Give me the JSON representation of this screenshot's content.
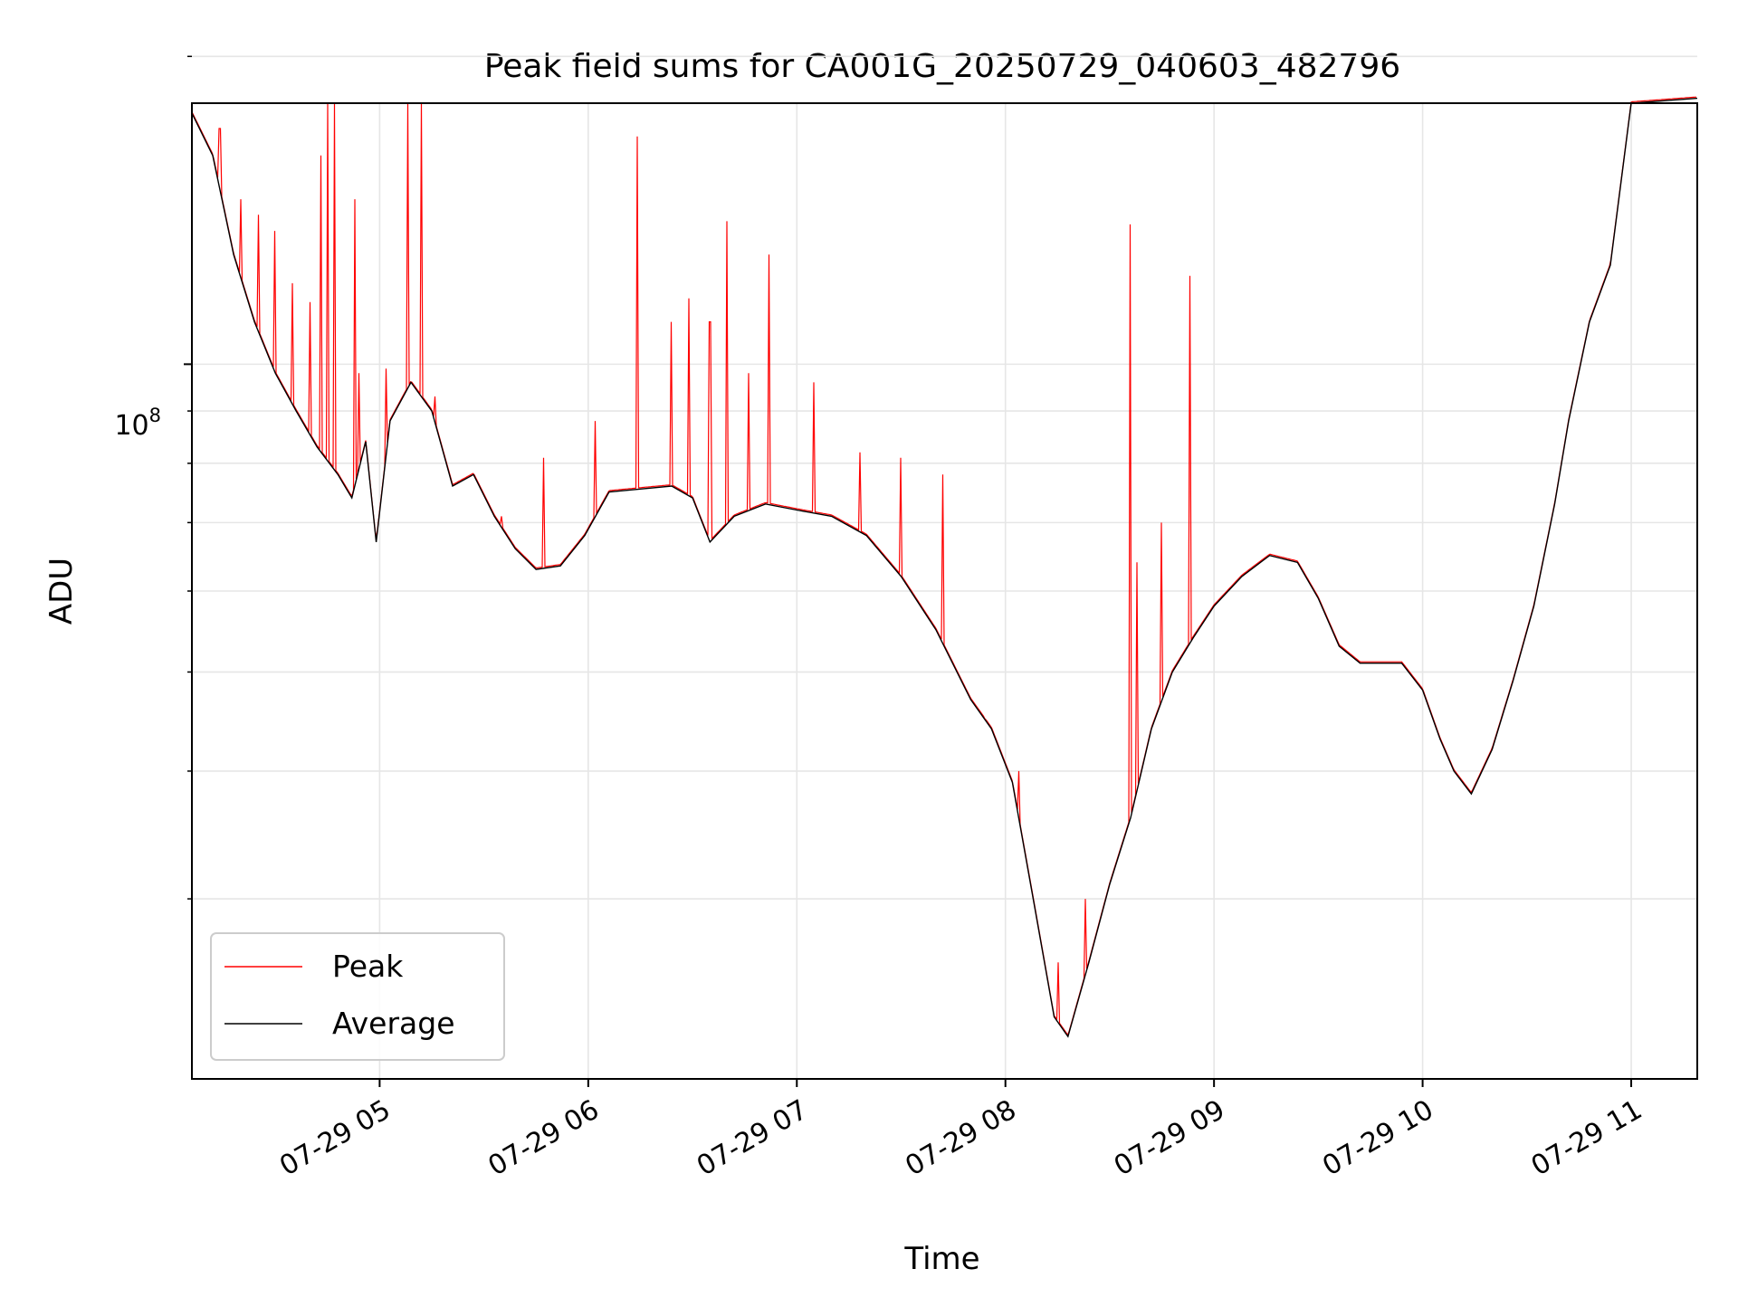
{
  "chart_data": {
    "type": "line",
    "title": "Peak field sums for CA001G_20250729_040603_482796",
    "xlabel": "Time",
    "ylabel": "ADU",
    "y_scale": "log",
    "ylim": [
      20000000,
      180000000
    ],
    "xlim": [
      "2025-07-29 04:06",
      "2025-07-29 11:19"
    ],
    "x_ticks": [
      "07-29 05",
      "07-29 06",
      "07-29 07",
      "07-29 08",
      "07-29 09",
      "07-29 10",
      "07-29 11"
    ],
    "x_tick_times": [
      "2025-07-29 05:00",
      "2025-07-29 06:00",
      "2025-07-29 07:00",
      "2025-07-29 08:00",
      "2025-07-29 09:00",
      "2025-07-29 10:00",
      "2025-07-29 11:00"
    ],
    "y_major_tick_label": "10",
    "y_major_tick_exponent": "8",
    "y_major_tick_value": 100000000,
    "y_minor_ticks": [
      30000000,
      40000000,
      50000000,
      60000000,
      70000000,
      80000000,
      90000000,
      200000000
    ],
    "grid": true,
    "legend_position": "lower-left",
    "colors": {
      "peak": "#ff0000",
      "average": "#000000",
      "grid": "#e6e6e6"
    },
    "series": [
      {
        "name": "Average",
        "x": [
          "2025-07-29 04:06",
          "2025-07-29 04:12",
          "2025-07-29 04:18",
          "2025-07-29 04:24",
          "2025-07-29 04:30",
          "2025-07-29 04:36",
          "2025-07-29 04:42",
          "2025-07-29 04:48",
          "2025-07-29 04:52",
          "2025-07-29 04:56",
          "2025-07-29 04:59",
          "2025-07-29 05:03",
          "2025-07-29 05:09",
          "2025-07-29 05:15",
          "2025-07-29 05:21",
          "2025-07-29 05:27",
          "2025-07-29 05:33",
          "2025-07-29 05:39",
          "2025-07-29 05:45",
          "2025-07-29 05:52",
          "2025-07-29 05:59",
          "2025-07-29 06:06",
          "2025-07-29 06:15",
          "2025-07-29 06:24",
          "2025-07-29 06:30",
          "2025-07-29 06:35",
          "2025-07-29 06:42",
          "2025-07-29 06:51",
          "2025-07-29 07:00",
          "2025-07-29 07:10",
          "2025-07-29 07:20",
          "2025-07-29 07:30",
          "2025-07-29 07:40",
          "2025-07-29 07:50",
          "2025-07-29 07:56",
          "2025-07-29 08:02",
          "2025-07-29 08:08",
          "2025-07-29 08:14",
          "2025-07-29 08:18",
          "2025-07-29 08:24",
          "2025-07-29 08:30",
          "2025-07-29 08:36",
          "2025-07-29 08:42",
          "2025-07-29 08:48",
          "2025-07-29 08:54",
          "2025-07-29 09:00",
          "2025-07-29 09:08",
          "2025-07-29 09:16",
          "2025-07-29 09:24",
          "2025-07-29 09:30",
          "2025-07-29 09:36",
          "2025-07-29 09:42",
          "2025-07-29 09:48",
          "2025-07-29 09:54",
          "2025-07-29 10:00",
          "2025-07-29 10:05",
          "2025-07-29 10:09",
          "2025-07-29 10:14",
          "2025-07-29 10:20",
          "2025-07-29 10:26",
          "2025-07-29 10:32",
          "2025-07-29 10:38",
          "2025-07-29 10:42",
          "2025-07-29 10:48",
          "2025-07-29 10:54",
          "2025-07-29 11:00",
          "2025-07-29 11:19"
        ],
        "y": [
          176000000,
          160000000,
          128000000,
          110000000,
          98000000,
          90000000,
          83000000,
          78000000,
          74000000,
          84000000,
          67000000,
          88000000,
          96000000,
          90000000,
          76000000,
          78000000,
          71000000,
          66000000,
          63000000,
          63500000,
          68000000,
          75000000,
          75500000,
          76000000,
          74000000,
          67000000,
          71000000,
          73000000,
          72000000,
          71000000,
          68000000,
          62000000,
          55000000,
          47000000,
          44000000,
          39000000,
          30000000,
          23000000,
          22000000,
          26000000,
          31000000,
          36000000,
          44000000,
          50000000,
          54000000,
          58000000,
          62000000,
          65000000,
          64000000,
          59000000,
          53000000,
          51000000,
          51000000,
          51000000,
          48000000,
          43000000,
          40000000,
          38000000,
          42000000,
          49000000,
          58000000,
          73000000,
          88000000,
          110000000,
          125000000,
          180000000,
          182000000
        ]
      },
      {
        "name": "Peak",
        "x": [
          "2025-07-29 04:14",
          "2025-07-29 04:20",
          "2025-07-29 04:25",
          "2025-07-29 04:30",
          "2025-07-29 04:35",
          "2025-07-29 04:40",
          "2025-07-29 04:43",
          "2025-07-29 04:45",
          "2025-07-29 04:47",
          "2025-07-29 04:53",
          "2025-07-29 04:54",
          "2025-07-29 05:02",
          "2025-07-29 05:08",
          "2025-07-29 05:12",
          "2025-07-29 05:16",
          "2025-07-29 05:35",
          "2025-07-29 05:47",
          "2025-07-29 06:02",
          "2025-07-29 06:14",
          "2025-07-29 06:24",
          "2025-07-29 06:29",
          "2025-07-29 06:35",
          "2025-07-29 06:40",
          "2025-07-29 06:46",
          "2025-07-29 06:52",
          "2025-07-29 07:05",
          "2025-07-29 07:18",
          "2025-07-29 07:30",
          "2025-07-29 07:42",
          "2025-07-29 07:54",
          "2025-07-29 08:04",
          "2025-07-29 08:15",
          "2025-07-29 08:23",
          "2025-07-29 08:36",
          "2025-07-29 08:38",
          "2025-07-29 08:45",
          "2025-07-29 08:53"
        ],
        "y": [
          170000000,
          145000000,
          140000000,
          135000000,
          120000000,
          115000000,
          160000000,
          185000000,
          185000000,
          145000000,
          98000000,
          99000000,
          185000000,
          185000000,
          93000000,
          71000000,
          81000000,
          88000000,
          167000000,
          110000000,
          116000000,
          110000000,
          138000000,
          98000000,
          128000000,
          96000000,
          82000000,
          81000000,
          78000000,
          45000000,
          40000000,
          26000000,
          30000000,
          137000000,
          64000000,
          70000000,
          122000000
        ]
      }
    ]
  }
}
